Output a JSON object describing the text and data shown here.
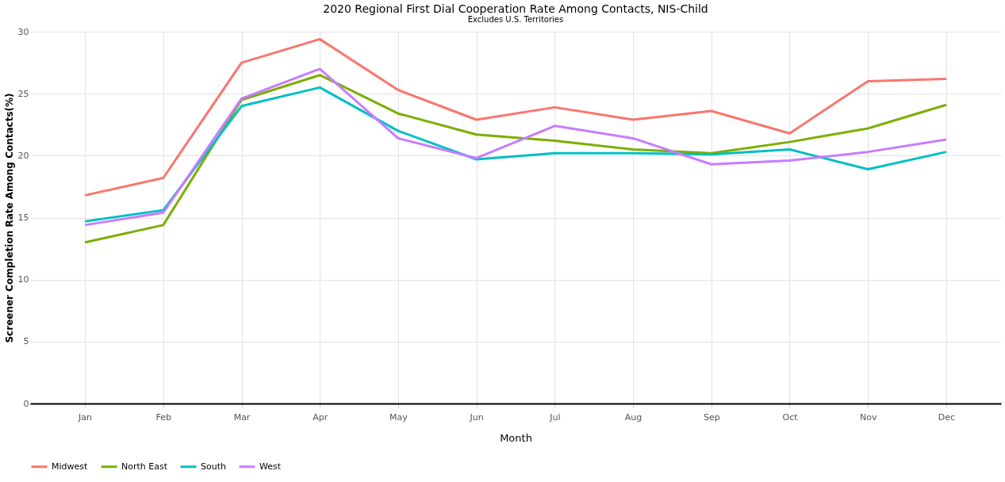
{
  "chart_data": {
    "type": "line",
    "title": "2020 Regional First Dial Cooperation Rate Among Contacts, NIS-Child",
    "subtitle": "Excludes U.S. Territories",
    "xlabel": "Month",
    "ylabel": "Screener Completion Rate Among Contacts(%)",
    "categories": [
      "Jan",
      "Feb",
      "Mar",
      "Apr",
      "May",
      "Jun",
      "Jul",
      "Aug",
      "Sep",
      "Oct",
      "Nov",
      "Dec"
    ],
    "series": [
      {
        "name": "Midwest",
        "color": "#f8766d",
        "values": [
          16.8,
          18.2,
          27.5,
          29.4,
          25.3,
          22.9,
          23.9,
          22.9,
          23.6,
          21.8,
          26.0,
          26.2
        ]
      },
      {
        "name": "North East",
        "color": "#7cae00",
        "values": [
          13.0,
          14.4,
          24.5,
          26.5,
          23.4,
          21.7,
          21.2,
          20.5,
          20.2,
          21.1,
          22.2,
          24.1
        ]
      },
      {
        "name": "South",
        "color": "#00bfc4",
        "values": [
          14.7,
          15.6,
          24.0,
          25.5,
          22.0,
          19.7,
          20.2,
          20.2,
          20.1,
          20.5,
          18.9,
          20.3
        ]
      },
      {
        "name": "West",
        "color": "#c77cff",
        "values": [
          14.4,
          15.4,
          24.6,
          27.0,
          21.4,
          19.8,
          22.4,
          21.4,
          19.3,
          19.6,
          20.3,
          21.3
        ]
      }
    ],
    "ylim": [
      0,
      30
    ],
    "yticks": [
      0,
      5,
      10,
      15,
      20,
      25,
      30
    ],
    "grid": true,
    "legend": "bottom",
    "marker": "none",
    "line_style": "solid"
  }
}
